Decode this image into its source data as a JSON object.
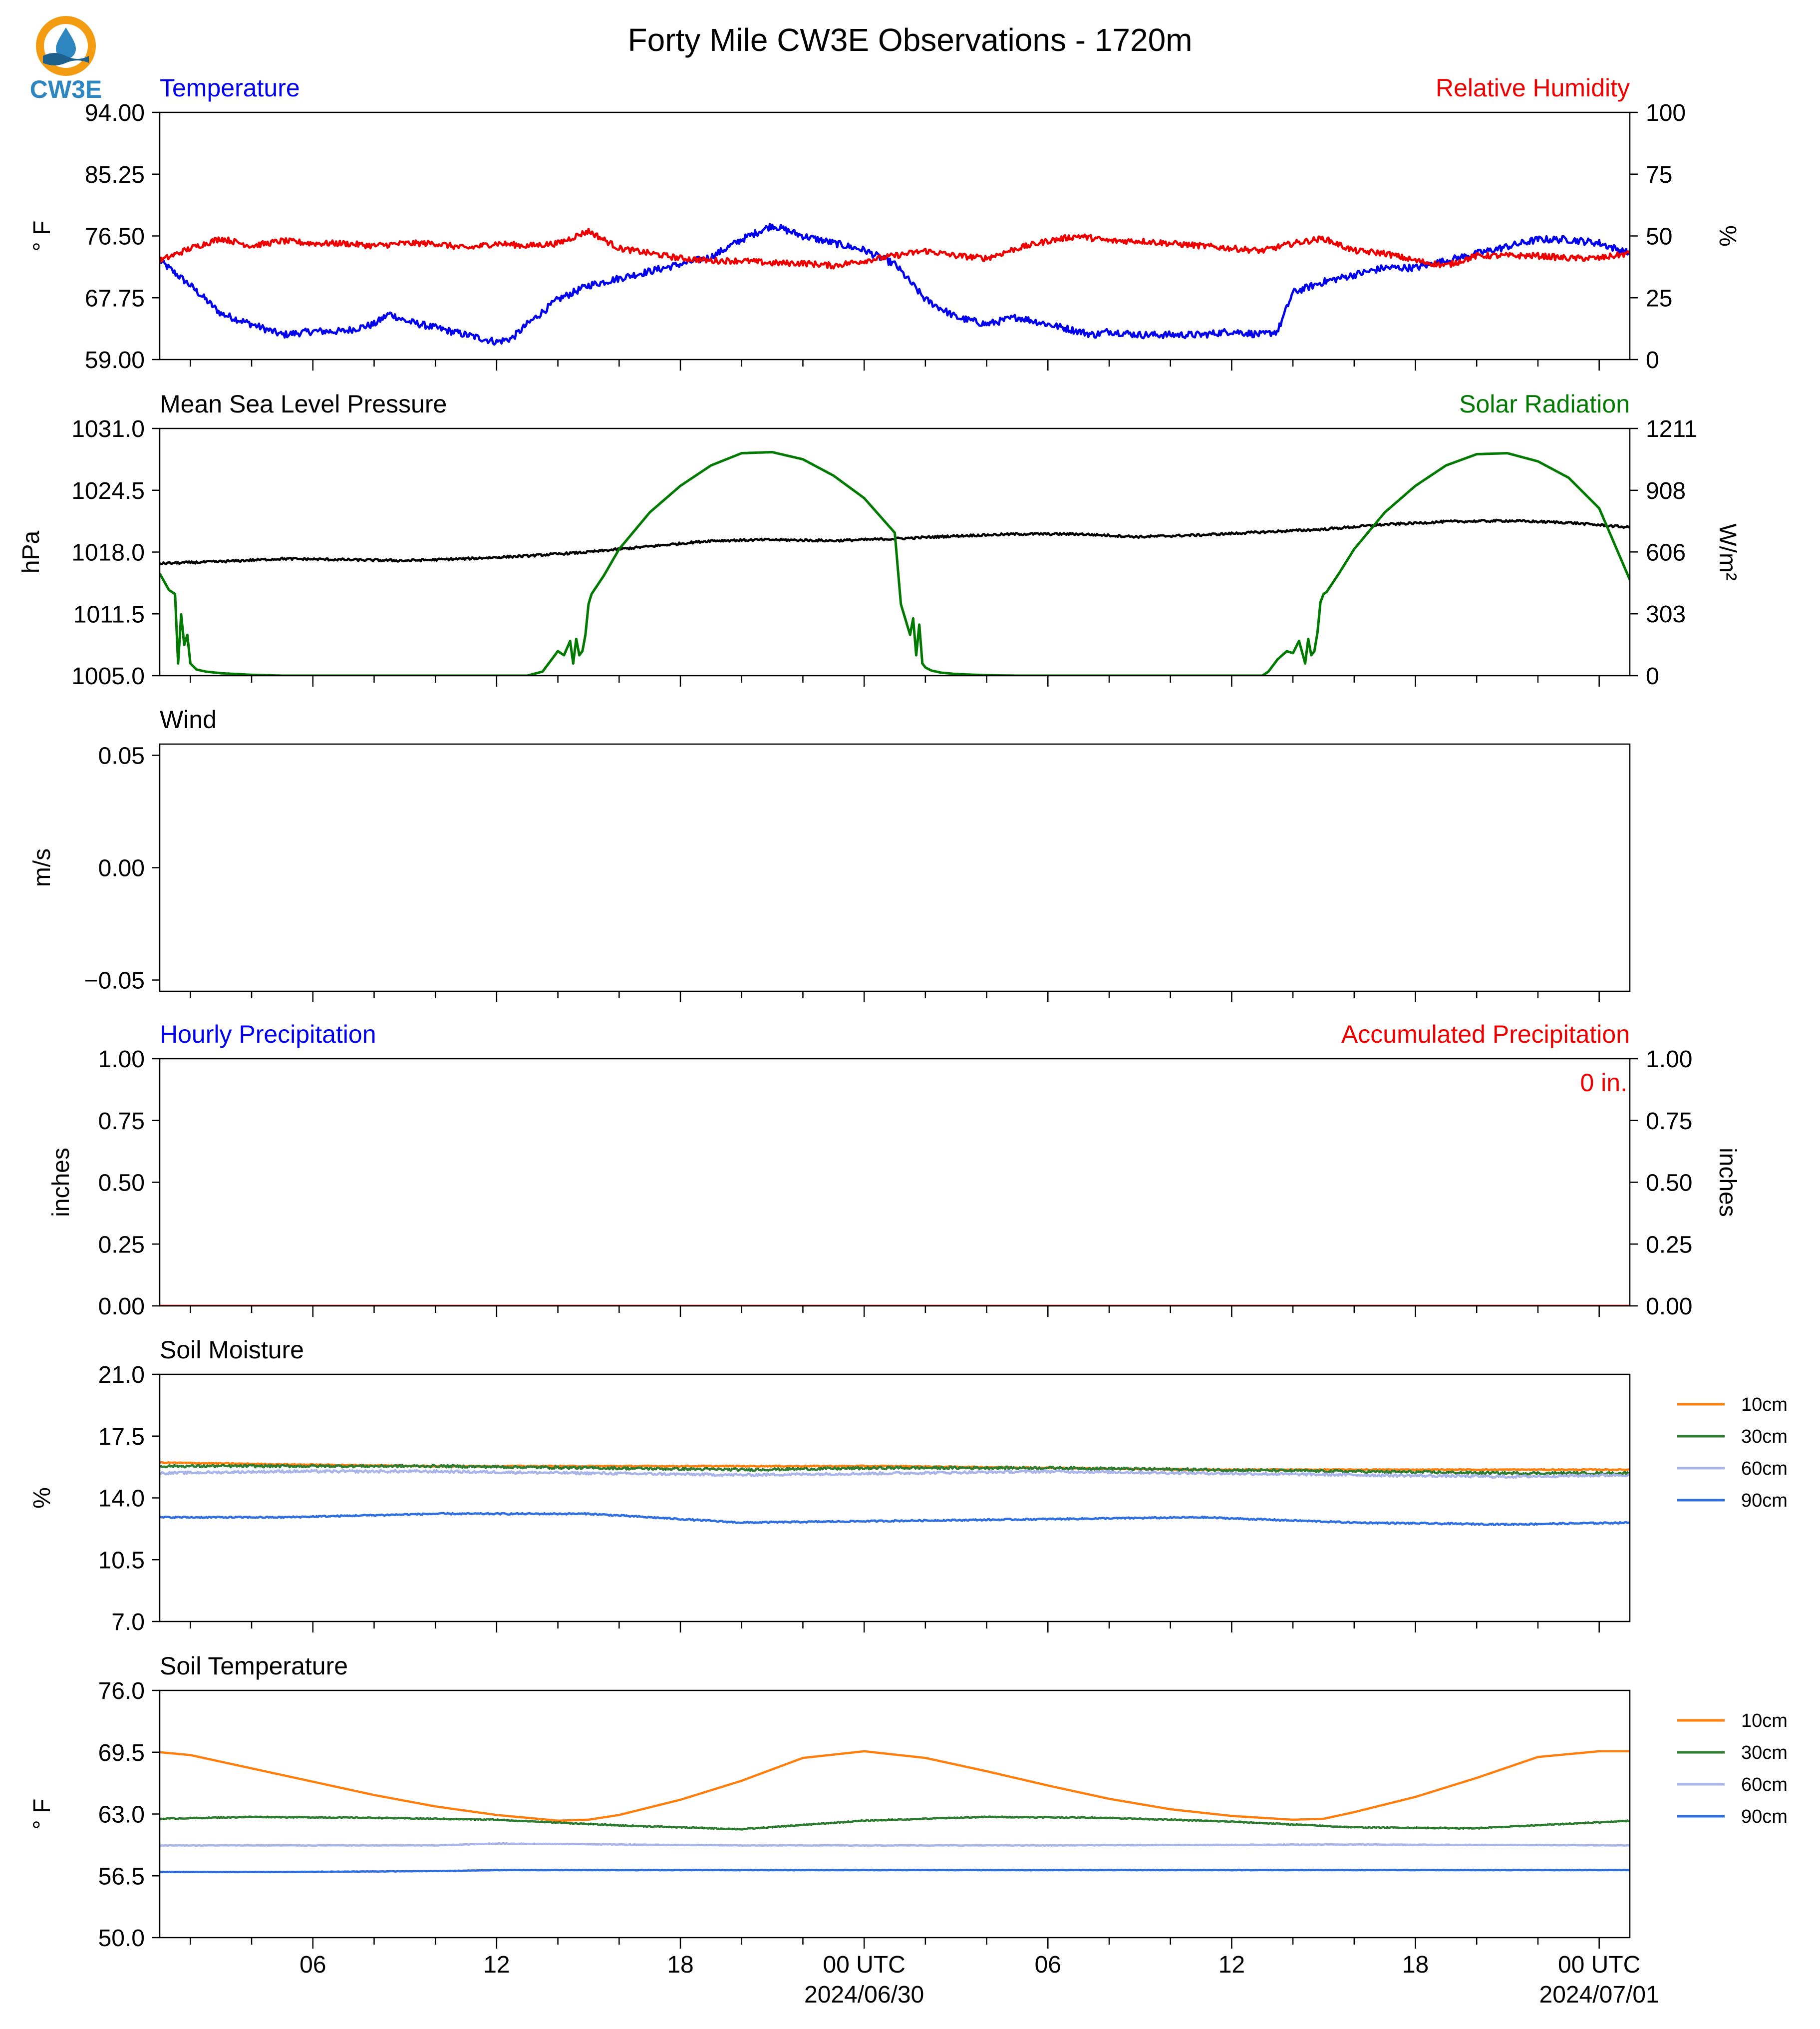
{
  "title": "Forty Mile CW3E Observations - 1720m",
  "logo": {
    "text": "CW3E",
    "colors": {
      "ring": "#f39c12",
      "drop": "#2e86c1",
      "wave": "#1f618d",
      "text": "#2e86c1"
    }
  },
  "x_axis": {
    "tick_labels": [
      {
        "hour": 6,
        "text": "06"
      },
      {
        "hour": 12,
        "text": "12"
      },
      {
        "hour": 18,
        "text": "18"
      },
      {
        "hour": 24,
        "text": "00 UTC",
        "date": "2024/06/30"
      },
      {
        "hour": 30,
        "text": "06"
      },
      {
        "hour": 36,
        "text": "12"
      },
      {
        "hour": 42,
        "text": "18"
      },
      {
        "hour": 48,
        "text": "00 UTC",
        "date": "2024/07/01"
      }
    ],
    "range_hours": [
      1,
      49
    ]
  },
  "colors": {
    "temperature": "#0000ee",
    "humidity": "#ee0000",
    "pressure": "#000000",
    "solar": "#007a00",
    "soil_10": "#ff7f0e",
    "soil_30": "#2e7d32",
    "soil_60": "#a9b4e8",
    "soil_90": "#2f6fe0"
  },
  "chart_data": [
    {
      "id": "temp-rh",
      "type": "line",
      "left_title": "Temperature",
      "right_title": "Relative Humidity",
      "left_ylabel": "° F",
      "right_ylabel": "%",
      "left_ticks": [
        "59.00",
        "67.75",
        "76.50",
        "85.25",
        "94.00"
      ],
      "right_ticks": [
        "0",
        "25",
        "50",
        "75",
        "100"
      ],
      "left_ylim": [
        59,
        94
      ],
      "right_ylim": [
        0,
        100
      ],
      "series": [
        {
          "name": "Temperature",
          "axis": "left",
          "color_key": "temperature",
          "x": [
            1,
            2,
            3,
            4,
            5,
            6,
            7,
            8,
            8.5,
            9,
            10,
            11,
            12,
            12.5,
            13,
            14,
            15,
            16,
            17,
            18,
            19,
            20,
            21,
            22,
            23,
            24,
            25,
            26,
            27,
            28,
            29,
            30,
            31,
            31.5,
            32,
            33,
            34,
            35,
            36,
            37,
            37.5,
            38,
            39,
            40,
            41,
            42,
            43,
            44,
            45,
            46,
            47,
            48,
            49
          ],
          "values": [
            73.0,
            69.5,
            65.5,
            64.0,
            62.5,
            63.0,
            63.0,
            64.0,
            65.5,
            64.5,
            63.5,
            62.5,
            61.5,
            62.0,
            64.0,
            67.5,
            69.5,
            70.5,
            71.5,
            72.5,
            73.5,
            76.0,
            78.0,
            76.5,
            75.5,
            74.5,
            72.5,
            67.5,
            65.0,
            64.0,
            65.0,
            64.0,
            63.0,
            62.5,
            63.0,
            62.5,
            62.5,
            62.5,
            63.0,
            62.5,
            63.0,
            68.5,
            70.0,
            71.0,
            72.0,
            72.0,
            73.0,
            74.0,
            75.0,
            76.0,
            76.0,
            75.5,
            74.0
          ],
          "noise": 0.5
        },
        {
          "name": "Relative Humidity",
          "axis": "right",
          "color_key": "humidity",
          "x": [
            1,
            2,
            3,
            4,
            5,
            6,
            7,
            8,
            9,
            10,
            11,
            12,
            13,
            14,
            15,
            16,
            17,
            18,
            19,
            20,
            21,
            22,
            23,
            24,
            25,
            26,
            27,
            28,
            29,
            30,
            31,
            32,
            33,
            34,
            35,
            36,
            37,
            38,
            39,
            40,
            41,
            42,
            43,
            44,
            45,
            46,
            47,
            48,
            49
          ],
          "values": [
            40,
            45,
            49,
            46,
            48,
            47,
            47,
            46,
            47,
            47,
            45,
            47,
            46,
            47,
            52,
            45,
            43,
            41,
            40,
            40,
            39,
            39,
            38,
            40,
            42,
            44,
            42,
            41,
            45,
            48,
            50,
            48,
            48,
            47,
            46,
            45,
            44,
            47,
            49,
            44,
            43,
            40,
            38,
            42,
            42,
            42,
            41,
            41,
            43
          ],
          "noise": 1.2
        }
      ]
    },
    {
      "id": "pressure-solar",
      "type": "line",
      "left_title": "Mean Sea Level Pressure",
      "right_title": "Solar Radiation",
      "left_ylabel": "hPa",
      "right_ylabel": "W/m²",
      "left_ticks": [
        "1005.0",
        "1011.5",
        "1018.0",
        "1024.5",
        "1031.0"
      ],
      "right_ticks": [
        "0",
        "303",
        "606",
        "908",
        "1211"
      ],
      "left_ylim": [
        1005,
        1031
      ],
      "right_ylim": [
        0,
        1211
      ],
      "series": [
        {
          "name": "Mean Sea Level Pressure",
          "axis": "left",
          "color_key": "pressure",
          "x": [
            1,
            3,
            5,
            7,
            9,
            11,
            13,
            15,
            17,
            19,
            21,
            23,
            25,
            27,
            29,
            31,
            33,
            35,
            37,
            39,
            41,
            43,
            45,
            47,
            49
          ],
          "values": [
            1016.8,
            1017.0,
            1017.3,
            1017.2,
            1017.1,
            1017.3,
            1017.6,
            1018.0,
            1018.6,
            1019.2,
            1019.3,
            1019.2,
            1019.4,
            1019.7,
            1019.9,
            1019.9,
            1019.6,
            1019.8,
            1020.1,
            1020.4,
            1020.9,
            1021.2,
            1021.3,
            1021.1,
            1020.6
          ],
          "noise": 0.12
        },
        {
          "name": "Solar Radiation",
          "axis": "right",
          "color_key": "solar",
          "x": [
            1,
            1.3,
            1.5,
            1.6,
            1.7,
            1.8,
            1.9,
            2.0,
            2.2,
            2.5,
            3,
            4,
            5,
            6,
            8,
            10,
            12,
            13,
            13.5,
            13.8,
            14,
            14.2,
            14.4,
            14.5,
            14.6,
            14.7,
            14.8,
            14.9,
            15.0,
            15.1,
            15.5,
            16,
            17,
            18,
            19,
            20,
            21,
            22,
            23,
            24,
            25,
            25.2,
            25.4,
            25.5,
            25.6,
            25.7,
            25.8,
            25.9,
            26.0,
            26.2,
            26.5,
            27,
            28,
            29,
            30,
            32,
            34,
            36,
            37,
            37.2,
            37.5,
            37.8,
            38.0,
            38.2,
            38.4,
            38.5,
            38.6,
            38.7,
            38.8,
            38.9,
            39.0,
            39.1,
            39.5,
            40,
            41,
            42,
            43,
            44,
            45,
            46,
            47,
            48,
            49
          ],
          "values": [
            500,
            420,
            400,
            60,
            300,
            150,
            200,
            60,
            30,
            20,
            12,
            4,
            0,
            0,
            0,
            0,
            0,
            0,
            20,
            80,
            120,
            100,
            170,
            60,
            180,
            100,
            120,
            200,
            350,
            400,
            490,
            620,
            800,
            930,
            1030,
            1090,
            1095,
            1060,
            980,
            870,
            700,
            350,
            250,
            200,
            280,
            100,
            250,
            60,
            40,
            25,
            15,
            8,
            2,
            0,
            0,
            0,
            0,
            0,
            0,
            20,
            80,
            120,
            110,
            170,
            60,
            180,
            100,
            120,
            210,
            360,
            400,
            410,
            500,
            620,
            800,
            930,
            1030,
            1085,
            1090,
            1050,
            970,
            820,
            470
          ],
          "noise": 0
        }
      ]
    },
    {
      "id": "wind",
      "type": "line",
      "left_title": "Wind",
      "right_title": "",
      "left_ylabel": "m/s",
      "right_ylabel": "",
      "left_ticks": [
        "−0.05",
        "0.00",
        "0.05"
      ],
      "left_tick_values": [
        -0.05,
        0,
        0.05
      ],
      "right_ticks": [],
      "left_ylim": [
        -0.055,
        0.055
      ],
      "series": []
    },
    {
      "id": "precip",
      "type": "line",
      "left_title": "Hourly Precipitation",
      "right_title": "Accumulated Precipitation",
      "left_ylabel": "inches",
      "right_ylabel": "inches",
      "left_ticks": [
        "0.00",
        "0.25",
        "0.50",
        "0.75",
        "1.00"
      ],
      "right_ticks": [
        "0.00",
        "0.25",
        "0.50",
        "0.75",
        "1.00"
      ],
      "left_ylim": [
        0,
        1
      ],
      "right_ylim": [
        0,
        1
      ],
      "annotation": "0 in.",
      "series": [
        {
          "name": "Accumulated Precipitation",
          "axis": "right",
          "color_key": "humidity",
          "x": [
            1,
            49
          ],
          "values": [
            0,
            0
          ],
          "noise": 0
        }
      ]
    },
    {
      "id": "soil-moisture",
      "type": "line",
      "left_title": "Soil Moisture",
      "right_title": "",
      "left_ylabel": "%",
      "right_ylabel": "",
      "left_ticks": [
        "7.0",
        "10.5",
        "14.0",
        "17.5",
        "21.0"
      ],
      "right_ticks": [],
      "left_ylim": [
        7,
        21
      ],
      "legend": [
        "10cm",
        "30cm",
        "60cm",
        "90cm"
      ],
      "series": [
        {
          "name": "10cm",
          "axis": "left",
          "color_key": "soil_10",
          "x": [
            1,
            5,
            10,
            15,
            20,
            25,
            30,
            35,
            40,
            45,
            49
          ],
          "values": [
            16.0,
            15.9,
            15.8,
            15.8,
            15.8,
            15.8,
            15.7,
            15.6,
            15.6,
            15.6,
            15.6
          ],
          "noise": 0.03
        },
        {
          "name": "30cm",
          "axis": "left",
          "color_key": "soil_30",
          "x": [
            1,
            5,
            10,
            15,
            20,
            25,
            30,
            35,
            40,
            45,
            49
          ],
          "values": [
            15.8,
            15.8,
            15.8,
            15.7,
            15.6,
            15.7,
            15.7,
            15.6,
            15.5,
            15.4,
            15.4
          ],
          "noise": 0.07
        },
        {
          "name": "60cm",
          "axis": "left",
          "color_key": "soil_60",
          "x": [
            1,
            5,
            10,
            15,
            20,
            25,
            30,
            35,
            40,
            45,
            49
          ],
          "values": [
            15.4,
            15.5,
            15.5,
            15.4,
            15.3,
            15.4,
            15.5,
            15.4,
            15.3,
            15.2,
            15.3
          ],
          "noise": 0.07
        },
        {
          "name": "90cm",
          "axis": "left",
          "color_key": "soil_90",
          "x": [
            1,
            5,
            10,
            15,
            20,
            25,
            30,
            35,
            40,
            45,
            49
          ],
          "values": [
            12.9,
            12.9,
            13.1,
            13.1,
            12.6,
            12.7,
            12.8,
            12.9,
            12.6,
            12.5,
            12.6
          ],
          "noise": 0.04
        }
      ]
    },
    {
      "id": "soil-temperature",
      "type": "line",
      "left_title": "Soil Temperature",
      "right_title": "",
      "left_ylabel": "° F",
      "right_ylabel": "",
      "left_ticks": [
        "50.0",
        "56.5",
        "63.0",
        "69.5",
        "76.0"
      ],
      "right_ticks": [],
      "left_ylim": [
        50,
        76
      ],
      "legend": [
        "10cm",
        "30cm",
        "60cm",
        "90cm"
      ],
      "series": [
        {
          "name": "10cm",
          "axis": "left",
          "color_key": "soil_10",
          "x": [
            1,
            2,
            4,
            6,
            8,
            10,
            12,
            14,
            15,
            16,
            18,
            20,
            22,
            24,
            26,
            28,
            30,
            32,
            34,
            36,
            38,
            39,
            40,
            42,
            44,
            46,
            48,
            49
          ],
          "values": [
            69.5,
            69.2,
            67.8,
            66.4,
            65.0,
            63.8,
            62.9,
            62.3,
            62.4,
            62.9,
            64.5,
            66.5,
            68.9,
            69.6,
            68.9,
            67.5,
            66.0,
            64.6,
            63.5,
            62.8,
            62.4,
            62.5,
            63.2,
            64.8,
            66.8,
            69.0,
            69.6,
            69.6
          ],
          "noise": 0
        },
        {
          "name": "30cm",
          "axis": "left",
          "color_key": "soil_30",
          "x": [
            1,
            4,
            8,
            12,
            16,
            20,
            24,
            28,
            32,
            36,
            40,
            44,
            49
          ],
          "values": [
            62.5,
            62.7,
            62.6,
            62.4,
            61.8,
            61.4,
            62.3,
            62.7,
            62.6,
            62.2,
            61.6,
            61.5,
            62.3
          ],
          "noise": 0.05
        },
        {
          "name": "60cm",
          "axis": "left",
          "color_key": "soil_60",
          "x": [
            1,
            10,
            12,
            20,
            30,
            40,
            49
          ],
          "values": [
            59.7,
            59.7,
            59.9,
            59.7,
            59.7,
            59.8,
            59.7
          ],
          "noise": 0.03
        },
        {
          "name": "90cm",
          "axis": "left",
          "color_key": "soil_90",
          "x": [
            1,
            5,
            10,
            12,
            20,
            30,
            40,
            49
          ],
          "values": [
            56.9,
            56.9,
            57.0,
            57.1,
            57.1,
            57.1,
            57.1,
            57.1
          ],
          "noise": 0.02
        }
      ]
    }
  ]
}
